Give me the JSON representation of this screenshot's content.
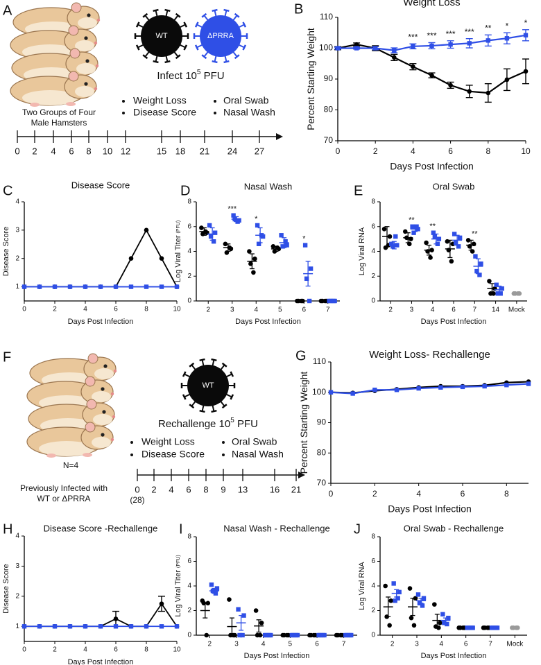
{
  "diagrams": [
    {
      "label": "A",
      "virus": [
        "WT",
        "ΔPRRA"
      ],
      "infect": {
        "text": "Infect 10",
        "sup": "5",
        "after": " PFU"
      },
      "readouts": [
        "Weight Loss",
        "Disease Score",
        "Oral Swab",
        "Nasal Wash"
      ],
      "group_text": [
        "Two Groups of  Four",
        "Male Hamsters"
      ],
      "timeline": [
        "0",
        "2",
        "4",
        "6",
        "8",
        "10",
        "12",
        "15",
        "18",
        "21",
        "24",
        "27"
      ]
    },
    {
      "label": "F",
      "virus": [
        "WT"
      ],
      "infect": {
        "text": "Rechallenge 10",
        "sup": "5",
        "after": " PFU"
      },
      "readouts": [
        "Weight Loss",
        "Disease Score",
        "Oral Swab",
        "Nasal Wash"
      ],
      "n_text": "N=4",
      "group_text": [
        "Previously Infected with",
        "WT or ΔPRRA"
      ],
      "timeline": [
        "0",
        "2",
        "4",
        "6",
        "8",
        "9",
        "13",
        "16",
        "21"
      ],
      "timeline_note": "(28)"
    }
  ],
  "chart_data": [
    {
      "type": "line",
      "label": "B",
      "title": "Weight Loss",
      "xlabel": "Days Post Infection",
      "ylabel": "Percent Starting Weight",
      "x": [
        0,
        1,
        2,
        3,
        4,
        5,
        6,
        7,
        8,
        9,
        10
      ],
      "xlim": [
        0,
        10
      ],
      "xticks": [
        0,
        2,
        4,
        6,
        8,
        10
      ],
      "ylim": [
        70,
        110
      ],
      "yticks": [
        70,
        80,
        90,
        100,
        110
      ],
      "annotations": [
        null,
        null,
        null,
        null,
        "***",
        "***",
        "***",
        "***",
        "**",
        "*",
        "*"
      ],
      "series": [
        {
          "color": "#000000",
          "marker": "circle",
          "values": [
            100,
            101.2,
            100,
            97,
            94,
            91.2,
            88,
            86,
            85.5,
            89.8,
            92.5
          ],
          "errors": [
            0.5,
            0.5,
            0.8,
            1,
            1,
            0.8,
            1,
            2,
            3,
            3.5,
            4
          ]
        },
        {
          "color": "#2f4fe6",
          "marker": "square",
          "values": [
            100,
            100,
            100,
            99.3,
            100.6,
            100.8,
            101.2,
            101.6,
            102.5,
            103.2,
            104.2
          ],
          "errors": [
            0.3,
            0.3,
            0.5,
            0.8,
            0.8,
            1,
            1.2,
            1.5,
            1.8,
            1.8,
            1.8
          ]
        }
      ]
    },
    {
      "type": "line",
      "label": "C",
      "title": "Disease Score",
      "xlabel": "Days Post Infection",
      "ylabel": "Disease Score",
      "x": [
        0,
        1,
        2,
        3,
        4,
        5,
        6,
        7,
        8,
        9,
        10
      ],
      "xlim": [
        0,
        10
      ],
      "xticks": [
        0,
        2,
        4,
        6,
        8,
        10
      ],
      "ylim": [
        0.5,
        4
      ],
      "yticks": [
        1,
        2,
        3,
        4
      ],
      "series": [
        {
          "color": "#000000",
          "marker": "circle",
          "values": [
            1,
            1,
            1,
            1,
            1,
            1,
            1,
            2,
            3,
            2,
            1
          ]
        },
        {
          "color": "#2f4fe6",
          "marker": "square",
          "values": [
            1,
            1,
            1,
            1,
            1,
            1,
            1,
            1,
            1,
            1,
            1
          ]
        }
      ]
    },
    {
      "type": "dotplot",
      "label": "D",
      "title": "Nasal Wash",
      "xlabel": "Days Post Infection",
      "ylabel": "Log Viral Titer",
      "ylabel_unit": "(PFU)",
      "categories": [
        "2",
        "3",
        "4",
        "5",
        "6",
        "7"
      ],
      "ylim": [
        0,
        8
      ],
      "yticks": [
        0,
        2,
        4,
        6,
        8
      ],
      "annotations": [
        null,
        "***",
        "*",
        null,
        "*",
        null
      ],
      "series": [
        {
          "color": "#000000",
          "marker": "circle",
          "points": [
            [
              5.9,
              5.5,
              5.4,
              5.6
            ],
            [
              4.6,
              4.2,
              3.9,
              4.3
            ],
            [
              4.0,
              3.4,
              3.0,
              2.3
            ],
            [
              4.4,
              4.2,
              4.0,
              4.3
            ],
            [
              0,
              0,
              0,
              0
            ],
            [
              0,
              0,
              0,
              0
            ]
          ],
          "means": [
            5.6,
            4.3,
            3.2,
            4.2,
            0,
            0
          ],
          "errors": [
            0.3,
            0.3,
            0.6,
            0.2,
            0,
            0
          ]
        },
        {
          "color": "#2f4fe6",
          "marker": "square",
          "points": [
            [
              6.1,
              5.5,
              5.2,
              4.8
            ],
            [
              6.9,
              6.5,
              6.6,
              6.4
            ],
            [
              6.1,
              5.2,
              4.6,
              5.3
            ],
            [
              5.3,
              4.5,
              4.4,
              4.8
            ],
            [
              4.5,
              2.6,
              1.8,
              0
            ],
            [
              0,
              0,
              0,
              0
            ]
          ],
          "means": [
            5.4,
            6.6,
            5.3,
            4.7,
            2.2,
            0
          ],
          "errors": [
            0.5,
            0.2,
            0.6,
            0.4,
            1.0,
            0
          ]
        }
      ]
    },
    {
      "type": "dotplot",
      "label": "E",
      "title": "Oral Swab",
      "xlabel": "Days Post Infection",
      "ylabel": "Log Viral RNA",
      "categories": [
        "2",
        "3",
        "4",
        "6",
        "7",
        "14",
        "Mock"
      ],
      "ylim": [
        0,
        8
      ],
      "yticks": [
        0,
        2,
        4,
        6,
        8
      ],
      "annotations": [
        null,
        "**",
        "**",
        null,
        "**",
        null,
        null
      ],
      "series": [
        {
          "color": "#000000",
          "marker": "circle",
          "points": [
            [
              5.8,
              5.2,
              4.3,
              4.5
            ],
            [
              5.6,
              5.0,
              5.1,
              4.6
            ],
            [
              4.7,
              4.1,
              4.0,
              3.5
            ],
            [
              4.8,
              4.6,
              4.1,
              3.2
            ],
            [
              4.9,
              4.6,
              4.4,
              4.0
            ],
            [
              1.6,
              1.0,
              0.6,
              0.6
            ],
            null
          ],
          "means": [
            5.2,
            5.1,
            4.1,
            4.2,
            4.5,
            1.0,
            null
          ],
          "errors": [
            0.8,
            0.4,
            0.4,
            0.7,
            0.4,
            0.4,
            null
          ]
        },
        {
          "color": "#2f4fe6",
          "marker": "square",
          "points": [
            [
              4.6,
              4.5,
              4.4,
              5.2
            ],
            [
              6.0,
              5.8,
              5.5,
              6.0
            ],
            [
              5.5,
              5.0,
              5.2,
              4.6
            ],
            [
              5.4,
              5.1,
              4.7,
              4.4
            ],
            [
              3.6,
              3.0,
              2.4,
              2.1
            ],
            [
              1.3,
              1.0,
              0.6,
              0.6
            ],
            null
          ],
          "means": [
            4.5,
            5.8,
            5.0,
            4.9,
            2.8,
            0.9,
            null
          ],
          "errors": [
            0.3,
            0.2,
            0.4,
            0.4,
            0.6,
            0.3,
            null
          ]
        },
        {
          "color": "#9a9a9a",
          "marker": "circle",
          "points": [
            null,
            null,
            null,
            null,
            null,
            null,
            [
              0.6,
              0.6,
              0.6,
              0.6
            ]
          ],
          "means": [
            null,
            null,
            null,
            null,
            null,
            null,
            0.6
          ],
          "errors": [
            null,
            null,
            null,
            null,
            null,
            null,
            null
          ]
        }
      ]
    },
    {
      "type": "line",
      "label": "G",
      "title": "Weight Loss- Rechallenge",
      "xlabel": "Days Post Infection",
      "ylabel": "Percent Starting Weight",
      "x": [
        0,
        1,
        2,
        3,
        4,
        5,
        6,
        7,
        8,
        9
      ],
      "xlim": [
        0,
        9
      ],
      "xticks": [
        0,
        2,
        4,
        6,
        8
      ],
      "ylim": [
        70,
        110
      ],
      "yticks": [
        70,
        80,
        90,
        100,
        110
      ],
      "series": [
        {
          "color": "#000000",
          "marker": "circle",
          "values": [
            100,
            99.8,
            100.5,
            101,
            101.6,
            102,
            102,
            102.3,
            103.2,
            103.5
          ]
        },
        {
          "color": "#2f4fe6",
          "marker": "square",
          "values": [
            100,
            99.6,
            100.8,
            100.8,
            101.3,
            101.6,
            101.8,
            102,
            102.4,
            102.8
          ]
        }
      ]
    },
    {
      "type": "line",
      "label": "H",
      "title": "Disease Score -Rechallenge",
      "xlabel": "Days Post Infection",
      "ylabel": "Disease Score",
      "x": [
        0,
        1,
        2,
        3,
        4,
        5,
        6,
        7,
        8,
        9,
        10
      ],
      "xlim": [
        0,
        10
      ],
      "xticks": [
        0,
        2,
        4,
        6,
        8,
        10
      ],
      "ylim": [
        0.5,
        4
      ],
      "yticks": [
        1,
        2,
        3,
        4
      ],
      "series": [
        {
          "color": "#000000",
          "marker": "circle",
          "values": [
            1,
            1,
            1,
            1,
            1,
            1,
            1.25,
            1,
            1,
            1.75,
            1
          ],
          "errors": [
            0,
            0,
            0,
            0,
            0,
            0,
            0.25,
            0,
            0,
            0.25,
            0
          ]
        },
        {
          "color": "#2f4fe6",
          "marker": "square",
          "values": [
            1,
            1,
            1,
            1,
            1,
            1,
            1,
            1,
            1,
            1,
            1
          ]
        }
      ]
    },
    {
      "type": "dotplot",
      "label": "I",
      "title": "Nasal Wash - Rechallenge",
      "xlabel": "Days Post Infection",
      "ylabel": "Log Viral Titer",
      "ylabel_unit": "(PFU)",
      "categories": [
        "2",
        "3",
        "4",
        "5",
        "6",
        "7"
      ],
      "ylim": [
        0,
        8
      ],
      "yticks": [
        0,
        2,
        4,
        6,
        8
      ],
      "series": [
        {
          "color": "#000000",
          "marker": "circle",
          "points": [
            [
              2.8,
              2.6,
              2.6,
              0
            ],
            [
              2.9,
              0,
              0,
              0
            ],
            [
              2.0,
              1.0,
              0,
              0
            ],
            [
              0,
              0,
              0,
              0
            ],
            [
              0,
              0,
              0,
              0
            ],
            [
              0,
              0,
              0,
              0
            ]
          ],
          "means": [
            2.0,
            0.7,
            0.75,
            0,
            0,
            0
          ],
          "errors": [
            0.6,
            0.7,
            0.5,
            0,
            0,
            0
          ]
        },
        {
          "color": "#2f4fe6",
          "marker": "square",
          "points": [
            [
              4.1,
              3.8,
              3.6,
              3.4
            ],
            [
              2.1,
              1.6,
              0,
              0
            ],
            [
              0,
              0,
              0,
              0
            ],
            [
              0,
              0,
              0,
              0
            ],
            [
              0,
              0,
              0,
              0
            ],
            [
              0,
              0,
              0,
              0
            ]
          ],
          "means": [
            3.6,
            1.0,
            0,
            0,
            0,
            0
          ],
          "errors": [
            0.2,
            0.6,
            0,
            0,
            0,
            0
          ]
        }
      ]
    },
    {
      "type": "dotplot",
      "label": "J",
      "title": "Oral Swab - Rechallenge",
      "xlabel": "Days Post Infection",
      "ylabel": "Log Viral RNA",
      "categories": [
        "2",
        "3",
        "4",
        "6",
        "7",
        "Mock"
      ],
      "ylim": [
        0,
        8
      ],
      "yticks": [
        0,
        2,
        4,
        6,
        8
      ],
      "series": [
        {
          "color": "#000000",
          "marker": "circle",
          "points": [
            [
              4.0,
              2.8,
              1.5,
              0.8
            ],
            [
              3.8,
              3.0,
              1.4,
              0.8
            ],
            [
              2.5,
              1.0,
              0.7,
              0.6
            ],
            [
              0.6,
              0.6,
              0.6,
              0.6
            ],
            [
              0.6,
              0.6,
              0.6,
              0.6
            ],
            null
          ],
          "means": [
            2.3,
            2.3,
            1.2,
            0.6,
            0.6,
            null
          ],
          "errors": [
            0.8,
            0.7,
            0.5,
            0,
            0,
            null
          ]
        },
        {
          "color": "#2f4fe6",
          "marker": "square",
          "points": [
            [
              4.2,
              3.5,
              2.8,
              3.0
            ],
            [
              3.3,
              3.0,
              2.6,
              2.4
            ],
            [
              1.7,
              1.4,
              1.0,
              0.9
            ],
            [
              0.6,
              0.6,
              0.6,
              0.6
            ],
            [
              0.6,
              0.6,
              0.6,
              0.6
            ],
            null
          ],
          "means": [
            3.4,
            2.8,
            1.2,
            0.6,
            0.6,
            null
          ],
          "errors": [
            0.3,
            0.2,
            0.2,
            0,
            0,
            null
          ]
        },
        {
          "color": "#9a9a9a",
          "marker": "circle",
          "points": [
            null,
            null,
            null,
            null,
            null,
            [
              0.6,
              0.6,
              0.6,
              0.6
            ]
          ],
          "means": [
            null,
            null,
            null,
            null,
            null,
            0.6
          ],
          "errors": [
            null,
            null,
            null,
            null,
            null,
            null
          ]
        }
      ]
    }
  ]
}
